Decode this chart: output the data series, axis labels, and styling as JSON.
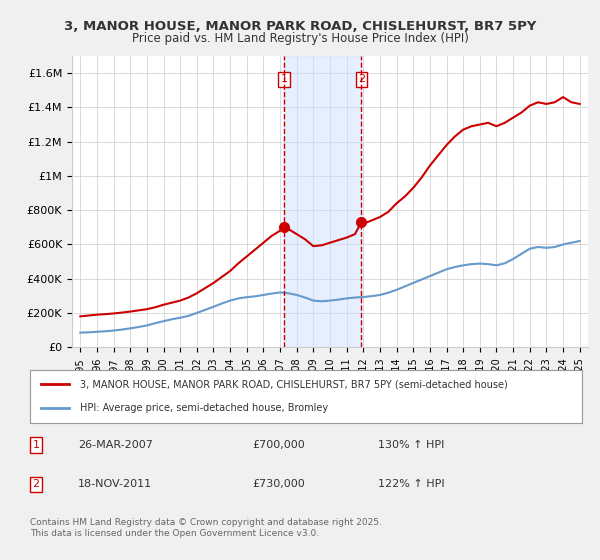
{
  "title": "3, MANOR HOUSE, MANOR PARK ROAD, CHISLEHURST, BR7 5PY",
  "subtitle": "Price paid vs. HM Land Registry's House Price Index (HPI)",
  "legend_line1": "3, MANOR HOUSE, MANOR PARK ROAD, CHISLEHURST, BR7 5PY (semi-detached house)",
  "legend_line2": "HPI: Average price, semi-detached house, Bromley",
  "footer": "Contains HM Land Registry data © Crown copyright and database right 2025.\nThis data is licensed under the Open Government Licence v3.0.",
  "annotation1_label": "1",
  "annotation1_date": "26-MAR-2007",
  "annotation1_price": "£700,000",
  "annotation1_hpi": "130% ↑ HPI",
  "annotation2_label": "2",
  "annotation2_date": "18-NOV-2011",
  "annotation2_price": "£730,000",
  "annotation2_hpi": "122% ↑ HPI",
  "property_color": "#cc0000",
  "hpi_color": "#6699cc",
  "sale1_x": 2007.23,
  "sale1_y": 700000,
  "sale2_x": 2011.88,
  "sale2_y": 730000,
  "sale1_marker_x": 2007.23,
  "sale2_marker_x": 2011.88,
  "background_color": "#f0f0f0",
  "plot_background": "#ffffff",
  "ylim": [
    0,
    1700000
  ],
  "xlim": [
    1994.5,
    2025.5
  ],
  "yticks": [
    0,
    200000,
    400000,
    600000,
    800000,
    1000000,
    1200000,
    1400000,
    1600000
  ],
  "ytick_labels": [
    "£0",
    "£200K",
    "£400K",
    "£600K",
    "£800K",
    "£1M",
    "£1.2M",
    "£1.4M",
    "£1.6M"
  ],
  "xticks": [
    1995,
    1996,
    1997,
    1998,
    1999,
    2000,
    2001,
    2002,
    2003,
    2004,
    2005,
    2006,
    2007,
    2008,
    2009,
    2010,
    2011,
    2012,
    2013,
    2014,
    2015,
    2016,
    2017,
    2018,
    2019,
    2020,
    2021,
    2022,
    2023,
    2024,
    2025
  ],
  "property_x": [
    1995.0,
    1995.5,
    1996.0,
    1996.5,
    1997.0,
    1997.5,
    1998.0,
    1998.5,
    1999.0,
    1999.5,
    2000.0,
    2000.5,
    2001.0,
    2001.5,
    2002.0,
    2002.5,
    2003.0,
    2003.5,
    2004.0,
    2004.5,
    2005.0,
    2005.5,
    2006.0,
    2006.5,
    2007.0,
    2007.23,
    2007.5,
    2008.0,
    2008.5,
    2009.0,
    2009.5,
    2010.0,
    2010.5,
    2011.0,
    2011.5,
    2011.88,
    2012.0,
    2012.5,
    2013.0,
    2013.5,
    2014.0,
    2014.5,
    2015.0,
    2015.5,
    2016.0,
    2016.5,
    2017.0,
    2017.5,
    2018.0,
    2018.5,
    2019.0,
    2019.5,
    2020.0,
    2020.5,
    2021.0,
    2021.5,
    2022.0,
    2022.5,
    2023.0,
    2023.5,
    2024.0,
    2024.5,
    2025.0
  ],
  "property_y": [
    180000,
    185000,
    190000,
    193000,
    197000,
    202000,
    208000,
    215000,
    222000,
    233000,
    248000,
    260000,
    272000,
    290000,
    315000,
    345000,
    375000,
    410000,
    445000,
    490000,
    530000,
    570000,
    610000,
    650000,
    680000,
    700000,
    690000,
    660000,
    630000,
    590000,
    595000,
    610000,
    625000,
    640000,
    660000,
    730000,
    720000,
    740000,
    760000,
    790000,
    840000,
    880000,
    930000,
    990000,
    1060000,
    1120000,
    1180000,
    1230000,
    1270000,
    1290000,
    1300000,
    1310000,
    1290000,
    1310000,
    1340000,
    1370000,
    1410000,
    1430000,
    1420000,
    1430000,
    1460000,
    1430000,
    1420000
  ],
  "hpi_x": [
    1995.0,
    1995.5,
    1996.0,
    1996.5,
    1997.0,
    1997.5,
    1998.0,
    1998.5,
    1999.0,
    1999.5,
    2000.0,
    2000.5,
    2001.0,
    2001.5,
    2002.0,
    2002.5,
    2003.0,
    2003.5,
    2004.0,
    2004.5,
    2005.0,
    2005.5,
    2006.0,
    2006.5,
    2007.0,
    2007.5,
    2008.0,
    2008.5,
    2009.0,
    2009.5,
    2010.0,
    2010.5,
    2011.0,
    2011.5,
    2012.0,
    2012.5,
    2013.0,
    2013.5,
    2014.0,
    2014.5,
    2015.0,
    2015.5,
    2016.0,
    2016.5,
    2017.0,
    2017.5,
    2018.0,
    2018.5,
    2019.0,
    2019.5,
    2020.0,
    2020.5,
    2021.0,
    2021.5,
    2022.0,
    2022.5,
    2023.0,
    2023.5,
    2024.0,
    2024.5,
    2025.0
  ],
  "hpi_y": [
    85000,
    87000,
    90000,
    93000,
    97000,
    103000,
    110000,
    118000,
    127000,
    140000,
    152000,
    163000,
    172000,
    183000,
    200000,
    218000,
    236000,
    255000,
    272000,
    285000,
    292000,
    297000,
    305000,
    313000,
    320000,
    315000,
    305000,
    290000,
    272000,
    268000,
    272000,
    278000,
    285000,
    290000,
    293000,
    298000,
    305000,
    318000,
    335000,
    355000,
    375000,
    395000,
    415000,
    435000,
    455000,
    468000,
    478000,
    485000,
    488000,
    485000,
    478000,
    490000,
    515000,
    545000,
    575000,
    585000,
    580000,
    585000,
    600000,
    610000,
    620000
  ]
}
